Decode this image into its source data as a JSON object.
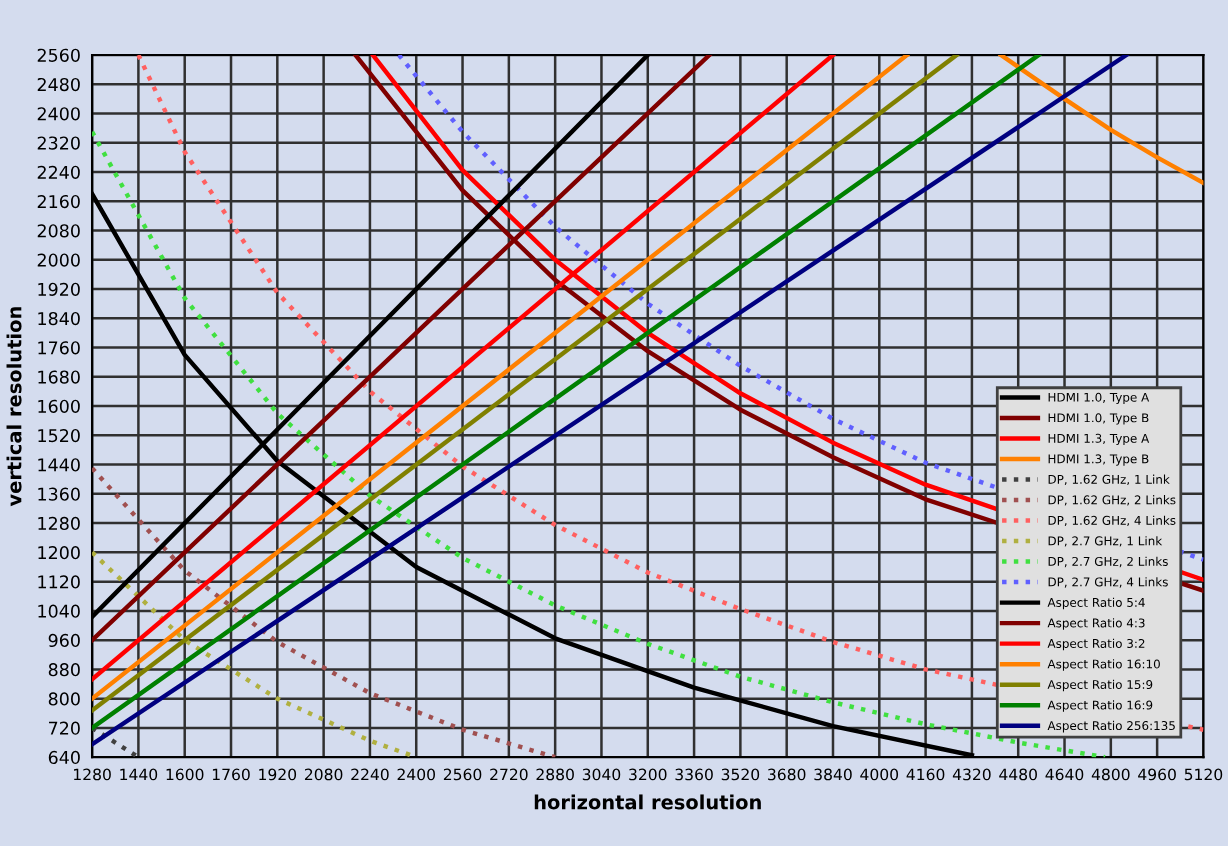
{
  "chart_data": {
    "type": "line",
    "xlabel": "horizontal resolution",
    "ylabel": "vertical resolution",
    "xlim": [
      1280,
      5120
    ],
    "ylim": [
      640,
      2560
    ],
    "xticks": [
      1280,
      1440,
      1600,
      1760,
      1920,
      2080,
      2240,
      2400,
      2560,
      2720,
      2880,
      3040,
      3200,
      3360,
      3520,
      3680,
      3840,
      4000,
      4160,
      4320,
      4480,
      4640,
      4800,
      4960,
      5120
    ],
    "yticks": [
      640,
      720,
      800,
      880,
      960,
      1040,
      1120,
      1200,
      1280,
      1360,
      1440,
      1520,
      1600,
      1680,
      1760,
      1840,
      1920,
      2000,
      2080,
      2160,
      2240,
      2320,
      2400,
      2480,
      2560
    ],
    "grid": true,
    "legend": "bottom right",
    "marker": "none",
    "series": [
      {
        "name": "HDMI 1.0, Type A",
        "color": "#000000",
        "line_style": "solid",
        "x": [
          1280,
          1600,
          1920,
          2400,
          2880,
          3360,
          3840,
          4320
        ],
        "values": [
          2180,
          1740,
          1450,
          1160,
          965,
          830,
          725,
          645
        ]
      },
      {
        "name": "HDMI 1.0, Type B",
        "color": "#800000",
        "line_style": "solid",
        "x": [
          2190,
          2560,
          2880,
          3200,
          3520,
          3840,
          4160,
          5120
        ],
        "values": [
          2560,
          2190,
          1945,
          1750,
          1590,
          1460,
          1345,
          1095
        ]
      },
      {
        "name": "HDMI 1.3, Type A",
        "color": "#ff0000",
        "line_style": "solid",
        "x": [
          2250,
          2560,
          2880,
          3200,
          3520,
          3840,
          4160,
          5120
        ],
        "values": [
          2560,
          2245,
          2000,
          1800,
          1635,
          1500,
          1385,
          1125
        ]
      },
      {
        "name": "HDMI 1.3, Type B",
        "color": "#ff8000",
        "line_style": "solid",
        "x": [
          4420,
          4640,
          4800,
          4960,
          5120
        ],
        "values": [
          2560,
          2440,
          2355,
          2280,
          2210
        ]
      },
      {
        "name": "DP, 1.62 GHz, 1 Link",
        "color": "#404040",
        "line_style": "dotted",
        "x": [
          1280,
          1360,
          1440
        ],
        "values": [
          720,
          680,
          640
        ]
      },
      {
        "name": "DP, 1.62 GHz, 2 Links",
        "color": "#a05050",
        "line_style": "dotted",
        "x": [
          1280,
          1600,
          1920,
          2240,
          2560,
          2880
        ],
        "values": [
          1430,
          1150,
          955,
          815,
          715,
          640
        ]
      },
      {
        "name": "DP, 1.62 GHz, 4 Links",
        "color": "#ff6060",
        "line_style": "dotted",
        "x": [
          1440,
          1600,
          1920,
          2240,
          2560,
          2880,
          3200,
          3520,
          3840,
          4160,
          5120
        ],
        "values": [
          2560,
          2295,
          1910,
          1640,
          1435,
          1275,
          1145,
          1045,
          955,
          880,
          715
        ]
      },
      {
        "name": "DP, 2.7 GHz, 1 Link",
        "color": "#b0b040",
        "line_style": "dotted",
        "x": [
          1280,
          1600,
          1920,
          2240,
          2400
        ],
        "values": [
          1200,
          960,
          800,
          685,
          640
        ]
      },
      {
        "name": "DP, 2.7 GHz, 2 Links",
        "color": "#40e040",
        "line_style": "dotted",
        "x": [
          1280,
          1600,
          1920,
          2240,
          2560,
          2880,
          3200,
          3520,
          3840,
          4160,
          4480,
          4780
        ],
        "values": [
          2350,
          1895,
          1580,
          1355,
          1185,
          1055,
          950,
          860,
          790,
          730,
          680,
          640
        ]
      },
      {
        "name": "DP, 2.7 GHz, 4 Links",
        "color": "#6060ff",
        "line_style": "dotted",
        "x": [
          2340,
          2560,
          2880,
          3200,
          3520,
          3840,
          4160,
          5120
        ],
        "values": [
          2560,
          2350,
          2090,
          1880,
          1710,
          1565,
          1445,
          1180
        ]
      },
      {
        "name": "Aspect Ratio 5:4",
        "color": "#000000",
        "line_style": "solid",
        "x": [
          1280,
          3200
        ],
        "values": [
          1024,
          2560
        ]
      },
      {
        "name": "Aspect Ratio 4:3",
        "color": "#800000",
        "line_style": "solid",
        "x": [
          1280,
          3413
        ],
        "values": [
          960,
          2560
        ]
      },
      {
        "name": "Aspect Ratio 3:2",
        "color": "#ff0000",
        "line_style": "solid",
        "x": [
          1280,
          3840
        ],
        "values": [
          853,
          2560
        ]
      },
      {
        "name": "Aspect Ratio 16:10",
        "color": "#ff8000",
        "line_style": "solid",
        "x": [
          1280,
          4096
        ],
        "values": [
          800,
          2560
        ]
      },
      {
        "name": "Aspect Ratio 15:9",
        "color": "#808000",
        "line_style": "solid",
        "x": [
          1280,
          4267
        ],
        "values": [
          768,
          2560
        ]
      },
      {
        "name": "Aspect Ratio 16:9",
        "color": "#008000",
        "line_style": "solid",
        "x": [
          1280,
          4551
        ],
        "values": [
          720,
          2560
        ]
      },
      {
        "name": "Aspect Ratio 256:135",
        "color": "#000080",
        "line_style": "solid",
        "x": [
          1280,
          4854
        ],
        "values": [
          675,
          2560
        ]
      }
    ]
  }
}
